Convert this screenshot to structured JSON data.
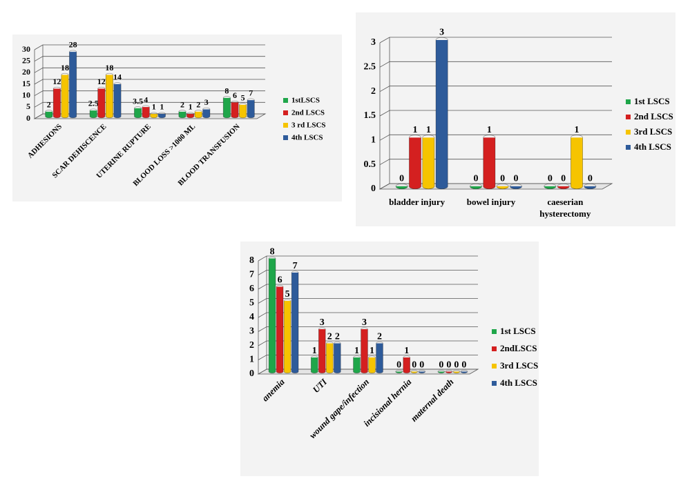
{
  "chart_data": [
    {
      "type": "bar",
      "categories": [
        "ADHESIONS",
        "SCAR DEHISCENCE",
        "UTERINE RUPTURE",
        "BLOOD LOSS >1000 ML",
        "BLOOD TRANSFUSION"
      ],
      "series": [
        {
          "name": "1stLSCS",
          "color": "#1fa64a",
          "values": [
            2,
            2.5,
            3.5,
            2,
            8
          ]
        },
        {
          "name": "2nd LSCS",
          "color": "#d42020",
          "values": [
            12,
            12,
            4,
            1,
            6
          ]
        },
        {
          "name": "3 rd LSCS",
          "color": "#f6c400",
          "values": [
            18,
            18,
            1,
            2,
            5
          ]
        },
        {
          "name": "4th LSCS",
          "color": "#2e5b9a",
          "values": [
            28,
            14,
            1,
            3,
            7
          ]
        }
      ],
      "ylim": [
        0,
        30
      ],
      "yticks": [
        0,
        5,
        10,
        15,
        20,
        25,
        30
      ],
      "grid": true,
      "legend": "right"
    },
    {
      "type": "bar",
      "categories": [
        "bladder injury",
        "bowel injury",
        "caeserian hysterectomy"
      ],
      "series": [
        {
          "name": "1st LSCS",
          "color": "#1fa64a",
          "values": [
            0,
            0,
            0
          ]
        },
        {
          "name": "2nd LSCS",
          "color": "#d42020",
          "values": [
            1,
            1,
            0
          ]
        },
        {
          "name": "3rd LSCS",
          "color": "#f6c400",
          "values": [
            1,
            0,
            1
          ]
        },
        {
          "name": "4th LSCS",
          "color": "#2e5b9a",
          "values": [
            3,
            0,
            0
          ]
        }
      ],
      "ylim": [
        0,
        3
      ],
      "yticks": [
        0,
        0.5,
        1,
        1.5,
        2,
        2.5,
        3
      ],
      "grid": true,
      "legend": "right"
    },
    {
      "type": "bar",
      "categories": [
        "anemia",
        "UTI",
        "wound gape/infection",
        "incisional hernia",
        "maternal death"
      ],
      "series": [
        {
          "name": "1st LSCS",
          "color": "#1fa64a",
          "values": [
            8,
            1,
            1,
            0,
            0
          ]
        },
        {
          "name": "2ndLSCS",
          "color": "#d42020",
          "values": [
            6,
            3,
            3,
            1,
            0
          ]
        },
        {
          "name": "3rd LSCS",
          "color": "#f6c400",
          "values": [
            5,
            2,
            1,
            0,
            0
          ]
        },
        {
          "name": "4th LSCS",
          "color": "#2e5b9a",
          "values": [
            7,
            2,
            2,
            0,
            0
          ]
        }
      ],
      "ylim": [
        0,
        8
      ],
      "yticks": [
        0,
        1,
        2,
        3,
        4,
        5,
        6,
        7,
        8
      ],
      "grid": true,
      "legend": "right"
    }
  ]
}
